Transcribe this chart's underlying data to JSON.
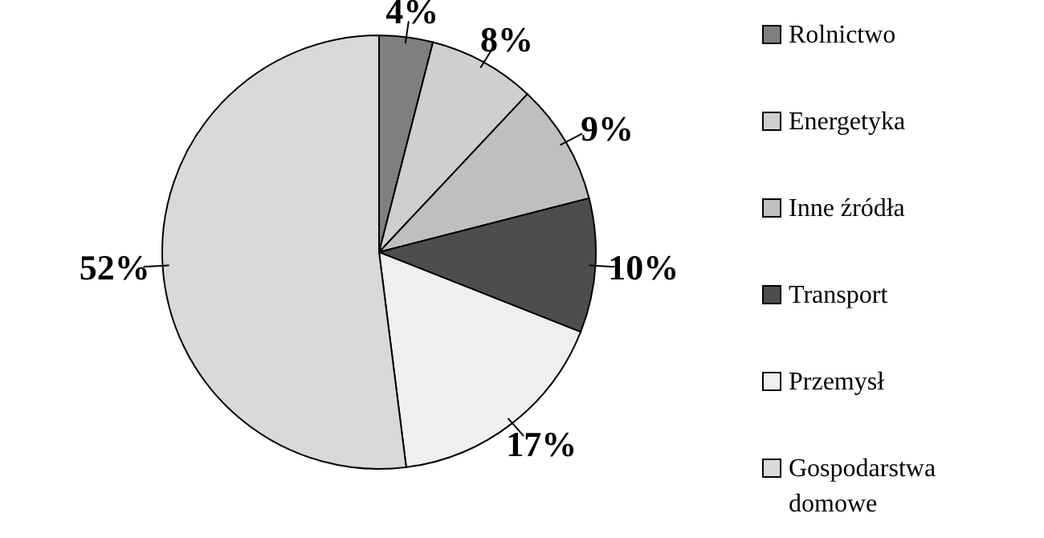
{
  "chart_data": {
    "type": "pie",
    "categories": [
      "Rolnictwo",
      "Energetyka",
      "Inne źródła",
      "Transport",
      "Przemysł",
      "Gospodarstwa domowe"
    ],
    "values": [
      4,
      8,
      9,
      10,
      17,
      52
    ],
    "colors": [
      "#7f7f7f",
      "#cfcfcf",
      "#bfbfbf",
      "#4d4d4d",
      "#efefef",
      "#d9d9d9"
    ],
    "value_labels": [
      "4%",
      "8%",
      "9%",
      "10%",
      "17%",
      "52%"
    ],
    "legend": "right"
  }
}
